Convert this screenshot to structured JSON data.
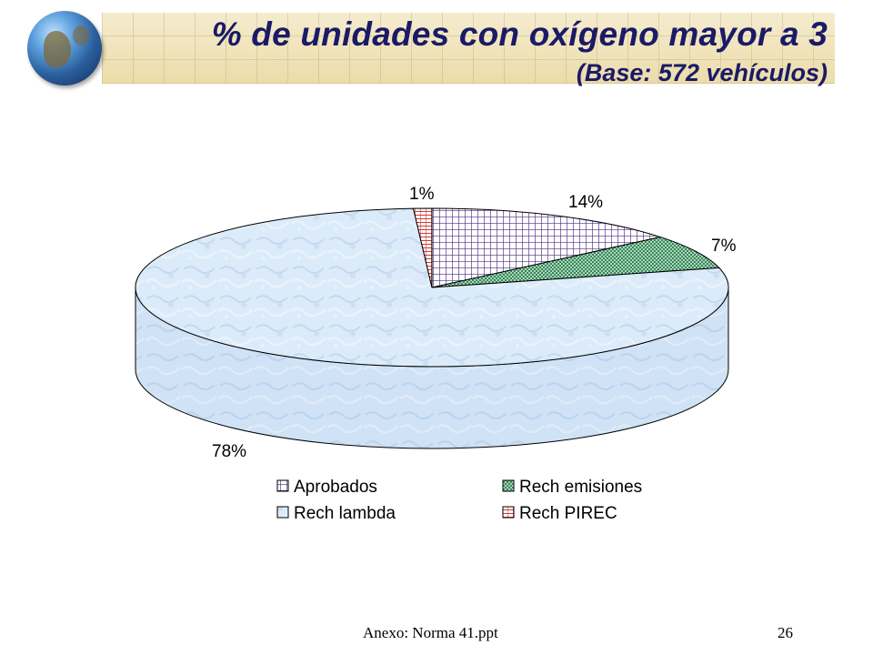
{
  "title": "% de unidades con oxígeno mayor a 3",
  "subtitle": "(Base: 572 vehículos)",
  "footer": "Anexo: Norma 41.ppt",
  "page_number": "26",
  "chart_data": {
    "type": "pie",
    "style": "3d",
    "slices": [
      {
        "label": "Aprobados",
        "value": 14,
        "display": "14%",
        "pattern": "grid",
        "color": "#6a4aa0"
      },
      {
        "label": "Rech emisiones",
        "value": 7,
        "display": "7%",
        "pattern": "crosshatch",
        "color": "#2e8b57"
      },
      {
        "label": "Rech lambda",
        "value": 78,
        "display": "78%",
        "pattern": "marble",
        "color": "#dcebfa"
      },
      {
        "label": "Rech PIREC",
        "value": 1,
        "display": "1%",
        "pattern": "lines",
        "color": "#d23c3c"
      }
    ],
    "legend": {
      "position": "bottom",
      "columns": 2
    },
    "legend_order": [
      "Aprobados",
      "Rech emisiones",
      "Rech lambda",
      "Rech PIREC"
    ]
  }
}
